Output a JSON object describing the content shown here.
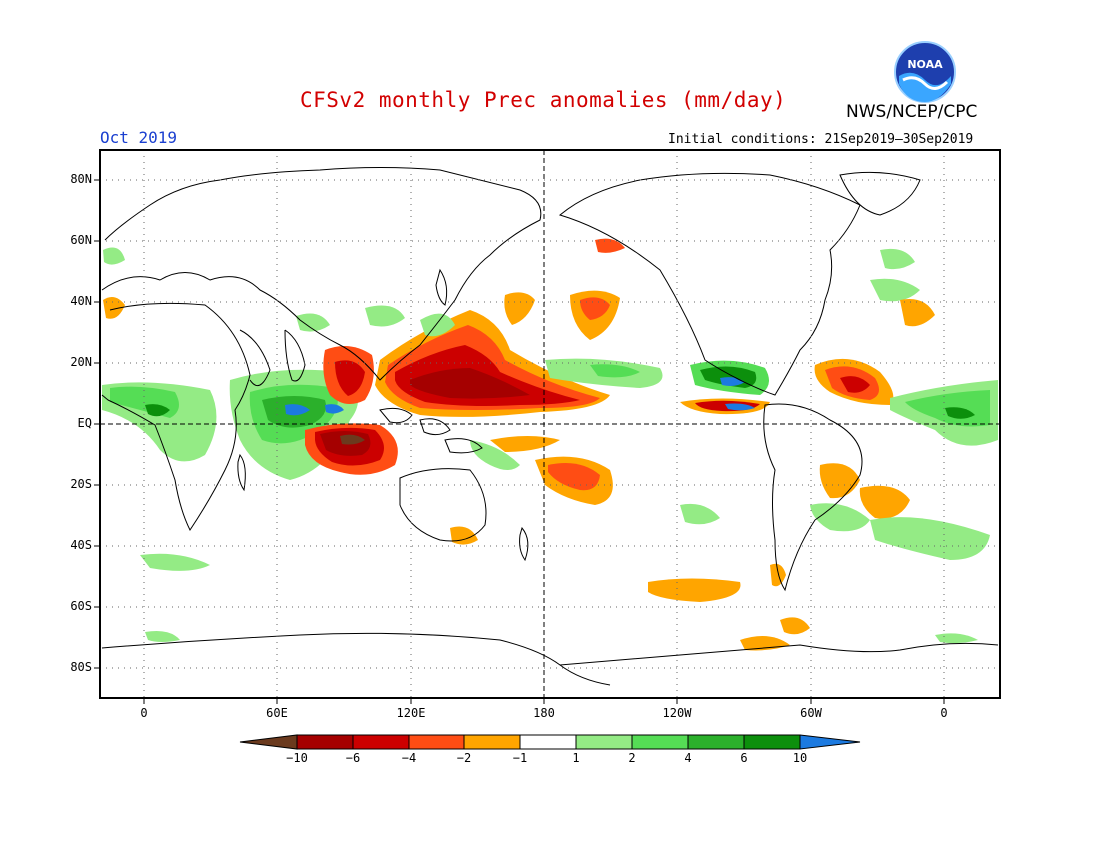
{
  "header": {
    "title": "CFSv2 monthly Prec anomalies (mm/day)",
    "agency": "NWS/NCEP/CPC",
    "month": "Oct 2019",
    "initial_conditions": "Initial conditions: 21Sep2019–30Sep2019"
  },
  "logo": {
    "text": "NOAA",
    "icon": "noaa-logo"
  },
  "axes": {
    "lat_labels": [
      "80N",
      "60N",
      "40N",
      "20N",
      "EQ",
      "20S",
      "40S",
      "60S",
      "80S"
    ],
    "lon_labels": [
      "0",
      "60E",
      "120E",
      "180",
      "120W",
      "60W",
      "0"
    ]
  },
  "colorbar": {
    "labels": [
      "−10",
      "−6",
      "−4",
      "−2",
      "−1",
      "1",
      "2",
      "4",
      "6",
      "10"
    ],
    "colors": [
      "#6b3a1e",
      "#a50000",
      "#cc0000",
      "#ff4d14",
      "#ffa500",
      "#ffffff",
      "#94eb85",
      "#55dd55",
      "#2bb02b",
      "#0c8f0c",
      "#1c7ae0"
    ]
  },
  "anomaly_colors": {
    "very_dry": "#6b3a1e",
    "dry_6": "#a50000",
    "dry_4": "#cc0000",
    "dry_2": "#ff4d14",
    "dry_1": "#ffa500",
    "wet_1": "#94eb85",
    "wet_2": "#55dd55",
    "wet_4": "#2bb02b",
    "wet_6": "#0c8f0c",
    "very_wet": "#1c7ae0"
  }
}
